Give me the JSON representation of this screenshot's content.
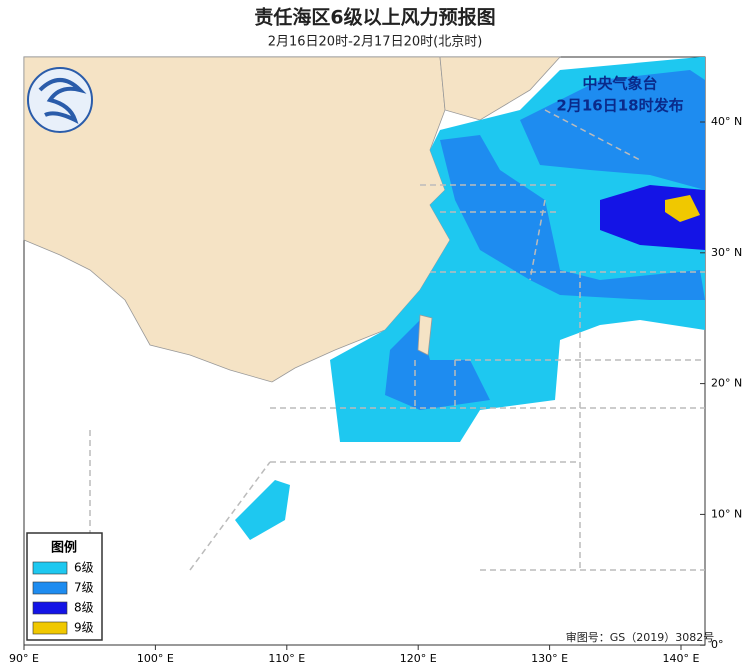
{
  "header": {
    "title": "责任海区6级以上风力预报图",
    "subtitle": "2月16日20时-2月17日20时(北京时)"
  },
  "stamp": {
    "agency": "中央气象台",
    "issued": "2月16日18时发布"
  },
  "legend": {
    "title": "图例",
    "items": [
      {
        "label": "6级",
        "color": "#1ec8f0"
      },
      {
        "label": "7级",
        "color": "#1e8cf0"
      },
      {
        "label": "8级",
        "color": "#1414e6"
      },
      {
        "label": "9级",
        "color": "#f0c800"
      }
    ]
  },
  "axes": {
    "lon_labels": [
      "90° E",
      "100° E",
      "110° E",
      "120° E",
      "130° E",
      "140° E"
    ],
    "lat_labels": [
      "40° N",
      "30° N",
      "20° N",
      "10° N",
      "0°"
    ]
  },
  "credit": "审图号：GS（2019）3082号"
}
